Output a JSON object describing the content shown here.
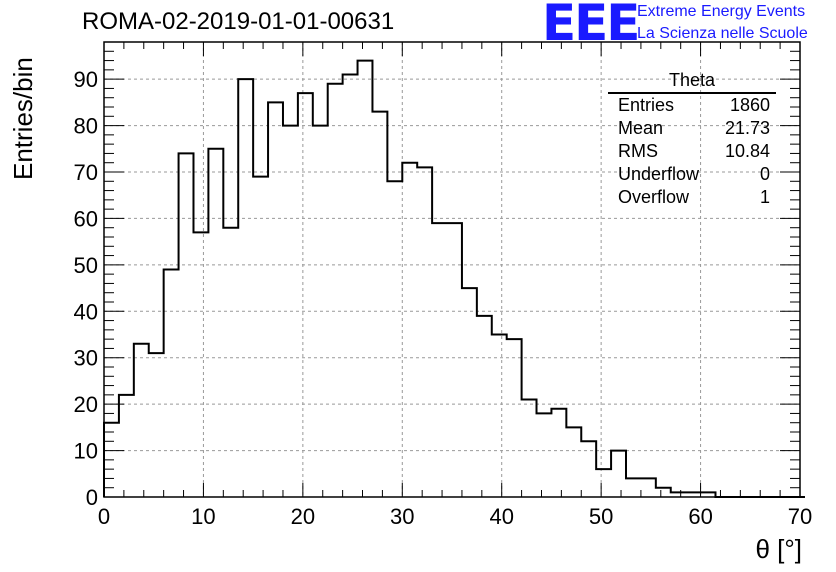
{
  "title": "ROMA-02-2019-01-01-00631",
  "logo": {
    "text": "EEE",
    "line1": "Extreme Energy Events",
    "line2": "La Scienza nelle Scuole",
    "color": "#1a1aff"
  },
  "stats": {
    "title": "Theta",
    "rows": [
      {
        "label": "Entries",
        "value": "1860"
      },
      {
        "label": "Mean",
        "value": "21.73"
      },
      {
        "label": "RMS",
        "value": "10.84"
      },
      {
        "label": "Underflow",
        "value": "0"
      },
      {
        "label": "Overflow",
        "value": "1"
      }
    ]
  },
  "chart_data": {
    "type": "bar",
    "title": "ROMA-02-2019-01-01-00631",
    "xlabel": "θ [°]",
    "ylabel": "Entries/bin",
    "xlim": [
      0,
      70
    ],
    "ylim": [
      0,
      98
    ],
    "grid": true,
    "x_ticks": [
      0,
      10,
      20,
      30,
      40,
      50,
      60,
      70
    ],
    "y_ticks": [
      0,
      10,
      20,
      30,
      40,
      50,
      60,
      70,
      80,
      90
    ],
    "bin_width": 1.5,
    "bin_edges_start": 0,
    "values": [
      16,
      22,
      33,
      31,
      49,
      74,
      57,
      75,
      58,
      90,
      69,
      85,
      80,
      87,
      80,
      89,
      91,
      94,
      83,
      68,
      72,
      71,
      59,
      59,
      45,
      39,
      35,
      34,
      21,
      18,
      19,
      15,
      12,
      6,
      10,
      4,
      4,
      2,
      1,
      1,
      1,
      0,
      0,
      0,
      0,
      0,
      0
    ]
  }
}
